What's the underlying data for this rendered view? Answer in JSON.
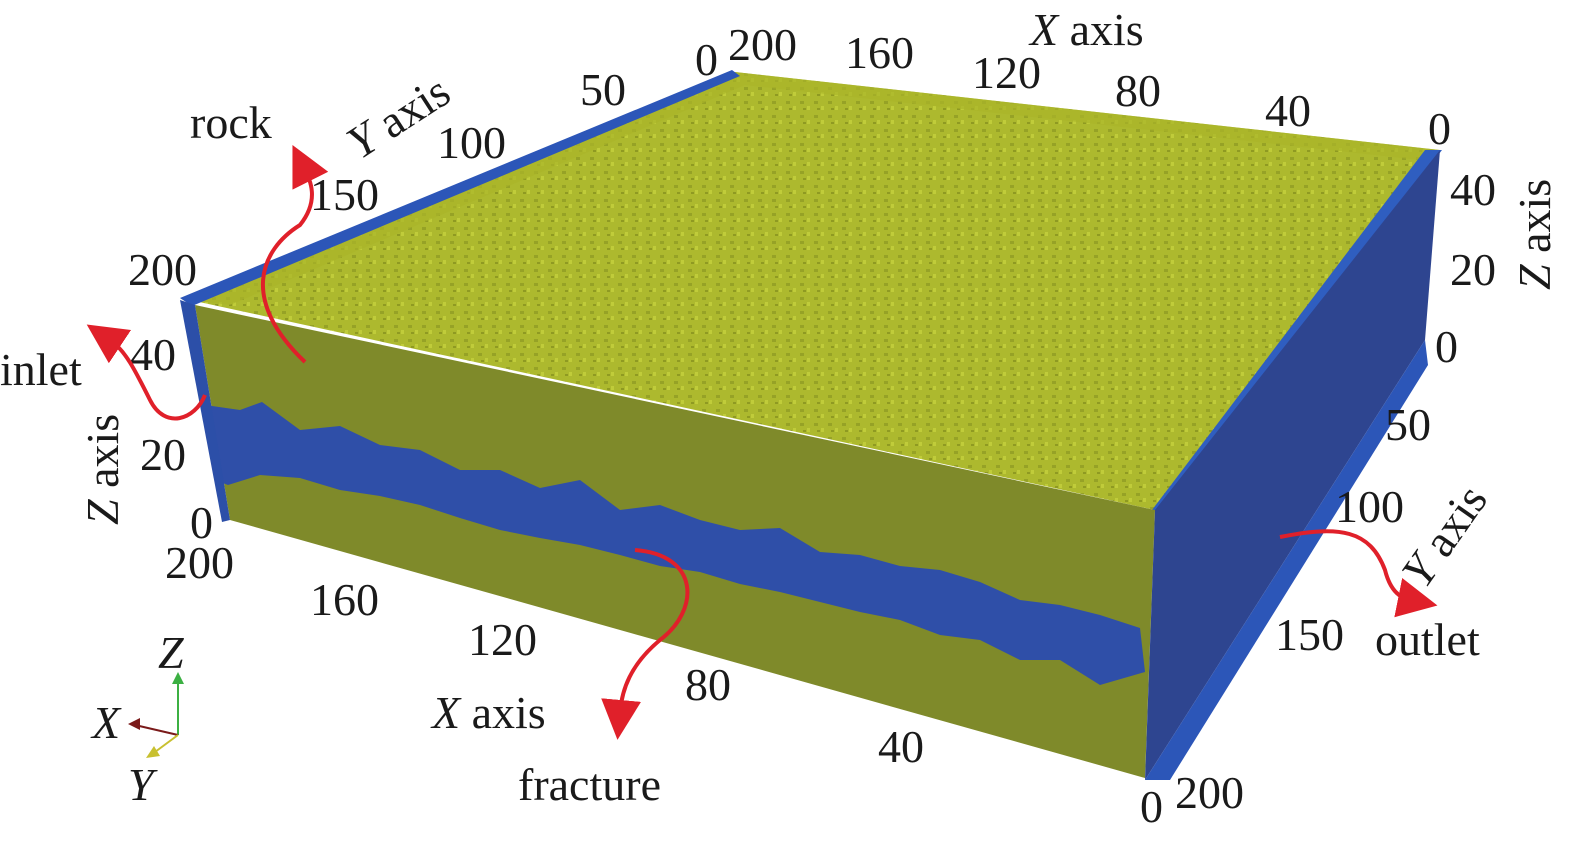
{
  "colors": {
    "rock": "#a9b52a",
    "rock_front": "#7f8a2a",
    "fracture": "#2f4fa8",
    "boundary": "#2c56b8",
    "side_face": "#2e4590",
    "arrow": "#e0202a",
    "axis_x": "#7a1a1a",
    "axis_y": "#c8c030",
    "axis_z": "#3cb043"
  },
  "labels": {
    "rock": "rock",
    "inlet": "inlet",
    "outlet": "outlet",
    "fracture": "fracture"
  },
  "axes": {
    "top_x": {
      "var": "X",
      "word": "axis",
      "ticks": [
        "200",
        "160",
        "120",
        "80",
        "40",
        "0"
      ]
    },
    "top_y": {
      "var": "Y",
      "word": "axis",
      "ticks": [
        "0",
        "50",
        "100",
        "150",
        "200"
      ]
    },
    "left_z": {
      "var": "Z",
      "word": "axis",
      "ticks": [
        "40",
        "20",
        "0"
      ]
    },
    "right_z": {
      "var": "Z",
      "word": "axis",
      "ticks": [
        "40",
        "20",
        "0"
      ]
    },
    "bottom_x": {
      "var": "X",
      "word": "axis",
      "ticks": [
        "200",
        "160",
        "120",
        "80",
        "40",
        "0"
      ]
    },
    "right_y": {
      "var": "Y",
      "word": "axis",
      "ticks": [
        "50",
        "100",
        "150",
        "200"
      ]
    }
  },
  "triad": {
    "x": "X",
    "y": "Y",
    "z": "Z"
  }
}
